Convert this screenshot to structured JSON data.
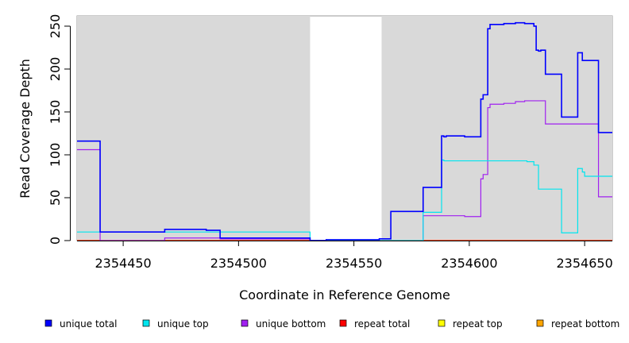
{
  "chart_data": {
    "type": "line",
    "step": true,
    "xlabel": "Coordinate in Reference Genome",
    "ylabel": "Read Coverage Depth",
    "xlim": [
      2354430,
      2354662
    ],
    "ylim": [
      0,
      262
    ],
    "x_ticks": [
      {
        "value": 2354450,
        "label": "2354450"
      },
      {
        "value": 2354500,
        "label": "2354500"
      },
      {
        "value": 2354550,
        "label": "2354550"
      },
      {
        "value": 2354600,
        "label": "2354600"
      },
      {
        "value": 2354650,
        "label": "2354650"
      }
    ],
    "y_ticks": [
      {
        "value": 0,
        "label": "0"
      },
      {
        "value": 50,
        "label": "50"
      },
      {
        "value": 100,
        "label": "100"
      },
      {
        "value": 150,
        "label": "150"
      },
      {
        "value": 200,
        "label": "200"
      },
      {
        "value": 250,
        "label": "250"
      }
    ],
    "background_color": "#d9d9d9",
    "covered_regions": [
      [
        2354430,
        2354531
      ],
      [
        2354562,
        2354662
      ]
    ],
    "legend_position": "bottom",
    "series": [
      {
        "name": "unique total",
        "color": "#0000ff",
        "x": [
          2354430,
          2354440,
          2354468,
          2354486,
          2354492,
          2354531,
          2354538,
          2354561,
          2354566,
          2354580,
          2354588,
          2354589,
          2354590,
          2354598,
          2354605,
          2354606,
          2354608,
          2354609,
          2354615,
          2354620,
          2354624,
          2354628,
          2354629,
          2354630,
          2354631,
          2354633,
          2354640,
          2354647,
          2354649,
          2354656
        ],
        "y": [
          116,
          10,
          13,
          12,
          3,
          0,
          1,
          2,
          34,
          62,
          122,
          121,
          122,
          121,
          165,
          170,
          247,
          252,
          253,
          254,
          253,
          250,
          222,
          221,
          222,
          194,
          144,
          219,
          210,
          126
        ],
        "x_end": 2354662
      },
      {
        "name": "unique top",
        "color": "#00e5ee",
        "x": [
          2354430,
          2354440,
          2354531,
          2354580,
          2354588,
          2354589,
          2354600,
          2354625,
          2354628,
          2354630,
          2354640,
          2354647,
          2354649,
          2354650
        ],
        "y": [
          10,
          10,
          0,
          33,
          94,
          93,
          93,
          92,
          88,
          60,
          9,
          84,
          80,
          75
        ],
        "x_end": 2354662
      },
      {
        "name": "unique bottom",
        "color": "#a020f0",
        "x": [
          2354430,
          2354440,
          2354468,
          2354492,
          2354531,
          2354580,
          2354598,
          2354605,
          2354606,
          2354608,
          2354609,
          2354615,
          2354620,
          2354624,
          2354633,
          2354656
        ],
        "y": [
          106,
          0,
          3,
          2,
          0,
          29,
          28,
          72,
          77,
          155,
          159,
          160,
          162,
          163,
          136,
          51
        ],
        "x_end": 2354662
      },
      {
        "name": "repeat total",
        "color": "#ff0000",
        "x": [
          2354430
        ],
        "y": [
          0
        ],
        "x_end": 2354662
      },
      {
        "name": "repeat top",
        "color": "#ffff00",
        "x": [
          2354430
        ],
        "y": [
          0
        ],
        "x_end": 2354662
      },
      {
        "name": "repeat bottom",
        "color": "#ffa500",
        "x": [
          2354430
        ],
        "y": [
          0
        ],
        "x_end": 2354662
      }
    ]
  }
}
